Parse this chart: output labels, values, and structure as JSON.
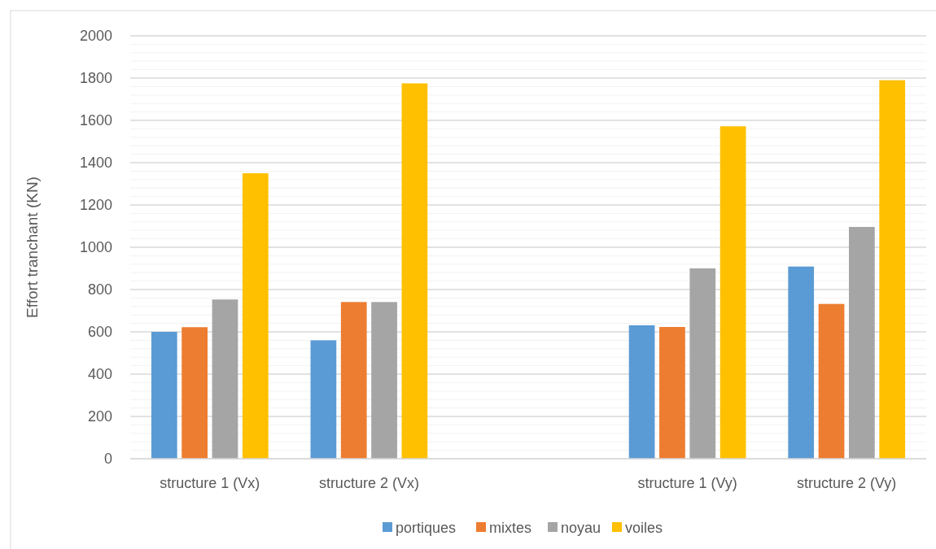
{
  "chart_data": {
    "type": "bar",
    "ylabel": "Effort tranchant (KN)",
    "categories": [
      "structure 1 (Vx)",
      "structure 2 (Vx)",
      null,
      "structure 1 (Vy)",
      "structure 2 (Vy)"
    ],
    "series": [
      {
        "name": "portiques",
        "color": "#5b9bd5",
        "values": [
          600,
          560,
          null,
          631,
          909
        ]
      },
      {
        "name": "mixtes",
        "color": "#ed7d31",
        "values": [
          622,
          741,
          null,
          623,
          732
        ]
      },
      {
        "name": "noyau",
        "color": "#a5a5a5",
        "values": [
          753,
          741,
          null,
          900,
          1096
        ]
      },
      {
        "name": "voiles",
        "color": "#ffc000",
        "values": [
          1350,
          1775,
          null,
          1572,
          1790
        ]
      }
    ],
    "ylim": [
      0,
      2000
    ],
    "yticks": [
      0,
      {
        "value": 40,
        "label": null
      },
      {
        "value": 80,
        "label": null
      },
      {
        "value": 120,
        "label": null
      },
      {
        "value": 160,
        "label": null
      },
      200,
      {
        "value": 240,
        "label": null
      },
      {
        "value": 280,
        "label": null
      },
      {
        "value": 320,
        "label": null
      },
      {
        "value": 360,
        "label": null
      },
      400,
      {
        "value": 440,
        "label": null
      },
      {
        "value": 480,
        "label": null
      },
      {
        "value": 520,
        "label": null
      },
      {
        "value": 560,
        "label": null
      },
      600,
      {
        "value": 640,
        "label": null
      },
      {
        "value": 680,
        "label": null
      },
      {
        "value": 720,
        "label": null
      },
      {
        "value": 760,
        "label": null
      },
      800,
      {
        "value": 840,
        "label": null
      },
      {
        "value": 880,
        "label": null
      },
      {
        "value": 920,
        "label": null
      },
      {
        "value": 960,
        "label": null
      },
      1000,
      {
        "value": 1040,
        "label": null
      },
      {
        "value": 1080,
        "label": null
      },
      {
        "value": 1120,
        "label": null
      },
      {
        "value": 1160,
        "label": null
      },
      1200,
      {
        "value": 1240,
        "label": null
      },
      {
        "value": 1280,
        "label": null
      },
      {
        "value": 1320,
        "label": null
      },
      {
        "value": 1360,
        "label": null
      },
      1400,
      {
        "value": 1440,
        "label": null
      },
      {
        "value": 1480,
        "label": null
      },
      {
        "value": 1520,
        "label": null
      },
      {
        "value": 1560,
        "label": null
      },
      1600,
      {
        "value": 1640,
        "label": null
      },
      {
        "value": 1680,
        "label": null
      },
      {
        "value": 1720,
        "label": null
      },
      {
        "value": 1760,
        "label": null
      },
      1800,
      {
        "value": 1840,
        "label": null
      },
      {
        "value": 1880,
        "label": null
      },
      {
        "value": 1920,
        "label": null
      },
      {
        "value": 1960,
        "label": null
      },
      2000
    ],
    "grid": "y",
    "legend": "bottom"
  }
}
